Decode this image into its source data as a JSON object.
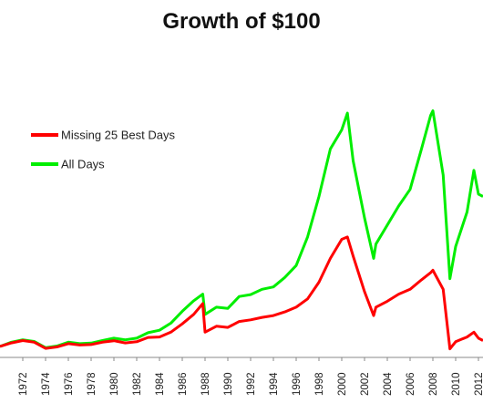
{
  "chart_data": {
    "type": "line",
    "title": "Growth of $100",
    "xlabel": "",
    "ylabel": "",
    "x_tick_labels": [
      "1972",
      "1974",
      "1976",
      "1978",
      "1980",
      "1982",
      "1984",
      "1986",
      "1988",
      "1990",
      "1992",
      "1994",
      "1996",
      "1998",
      "2000",
      "2002",
      "2004",
      "2006",
      "2008",
      "2010",
      "2012"
    ],
    "xlim": [
      1970,
      2012.4
    ],
    "ylim": [
      0,
      1000
    ],
    "y_axis_visible": false,
    "grid": false,
    "legend_position": "upper-left",
    "series": [
      {
        "name": "Missing 25 Best Days",
        "color": "#ff0000",
        "x": [
          1970,
          1971,
          1972,
          1973,
          1974,
          1975,
          1976,
          1977,
          1978,
          1979,
          1980,
          1981,
          1982,
          1983,
          1984,
          1985,
          1986,
          1987,
          1987.8,
          1988,
          1989,
          1990,
          1991,
          1992,
          1993,
          1994,
          1995,
          1996,
          1997,
          1998,
          1999,
          2000,
          2000.5,
          2001,
          2002,
          2002.8,
          2003,
          2004,
          2005,
          2006,
          2007,
          2007.8,
          2008,
          2008.9,
          2009.5,
          2010,
          2011,
          2011.6,
          2012,
          2012.4
        ],
        "values": [
          100,
          115,
          125,
          118,
          92,
          98,
          112,
          106,
          108,
          118,
          124,
          115,
          120,
          138,
          140,
          160,
          195,
          235,
          280,
          160,
          185,
          180,
          205,
          212,
          222,
          230,
          245,
          265,
          300,
          370,
          470,
          550,
          560,
          480,
          330,
          230,
          265,
          290,
          320,
          340,
          380,
          410,
          420,
          340,
          90,
          120,
          140,
          160,
          135,
          125
        ]
      },
      {
        "name": "All Days",
        "color": "#00ee00",
        "x": [
          1970,
          1971,
          1972,
          1973,
          1974,
          1975,
          1976,
          1977,
          1978,
          1979,
          1980,
          1981,
          1982,
          1983,
          1984,
          1985,
          1986,
          1987,
          1987.8,
          1988,
          1989,
          1990,
          1991,
          1992,
          1993,
          1994,
          1995,
          1996,
          1997,
          1998,
          1999,
          2000,
          2000.5,
          2001,
          2002,
          2002.8,
          2003,
          2004,
          2005,
          2006,
          2007,
          2007.8,
          2008,
          2008.9,
          2009.5,
          2010,
          2011,
          2011.6,
          2012,
          2012.4
        ],
        "values": [
          100,
          118,
          128,
          121,
          95,
          102,
          118,
          112,
          114,
          125,
          135,
          128,
          135,
          158,
          168,
          198,
          248,
          292,
          320,
          235,
          265,
          260,
          310,
          318,
          340,
          350,
          390,
          440,
          560,
          730,
          930,
          1010,
          1080,
          880,
          640,
          470,
          530,
          610,
          690,
          760,
          930,
          1070,
          1090,
          820,
          385,
          520,
          665,
          840,
          740,
          730
        ]
      }
    ]
  }
}
